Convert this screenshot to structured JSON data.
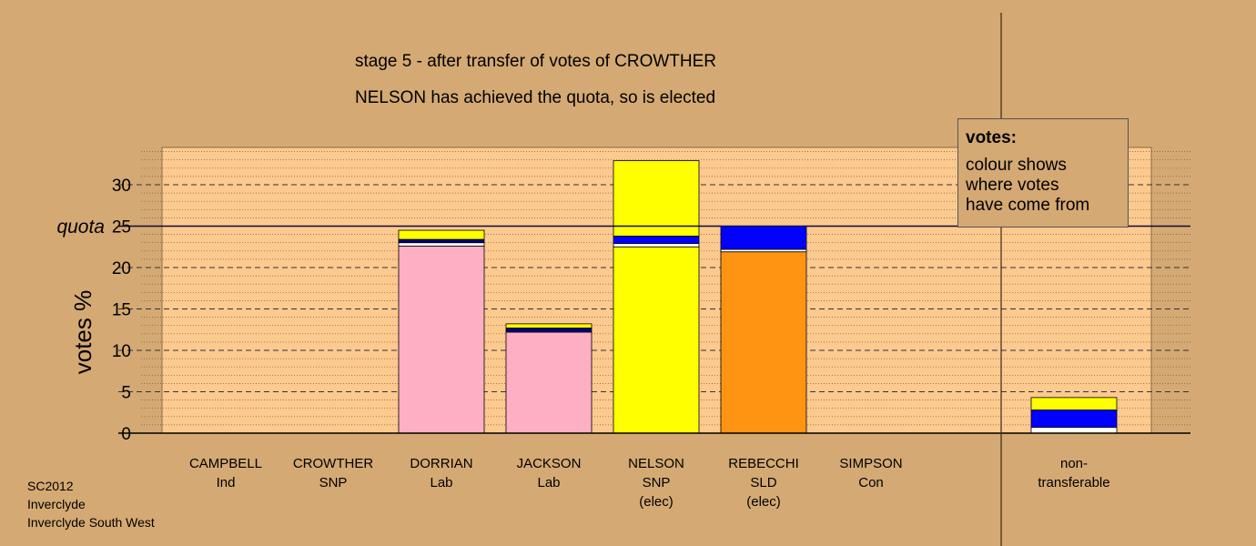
{
  "title_line1": "stage 5 - after transfer of votes of CROWTHER",
  "title_line2": "NELSON has achieved the quota, so is elected",
  "legend": {
    "title": "votes:",
    "line1": "colour shows",
    "line2": "where votes",
    "line3": "have come from"
  },
  "footer": {
    "line1": "SC2012",
    "line2": "Inverclyde",
    "line3": "Inverclyde South West"
  },
  "colors": {
    "background": "#d4a973",
    "plot_area": "#fcc98f",
    "Lab": "#ffafc3",
    "SNP": "#ffff00",
    "SLD": "#ff9412",
    "transfer_blue": "#0000ff",
    "transfer_navy": "#000080",
    "white": "#ffffff"
  },
  "chart_data": {
    "type": "bar",
    "stacked": true,
    "ylabel": "votes %",
    "ylim": [
      0,
      35
    ],
    "yticks": [
      0,
      5,
      10,
      15,
      20,
      25,
      30
    ],
    "quota": {
      "value": 25,
      "label": "quota"
    },
    "grid": true,
    "categories": [
      {
        "name": "CAMPBELL",
        "party": "Ind",
        "note": ""
      },
      {
        "name": "CROWTHER",
        "party": "SNP",
        "note": ""
      },
      {
        "name": "DORRIAN",
        "party": "Lab",
        "note": ""
      },
      {
        "name": "JACKSON",
        "party": "Lab",
        "note": ""
      },
      {
        "name": "NELSON",
        "party": "SNP",
        "note": "(elec)"
      },
      {
        "name": "REBECCHI",
        "party": "SLD",
        "note": "(elec)"
      },
      {
        "name": "SIMPSON",
        "party": "Con",
        "note": ""
      },
      {
        "name": "non-",
        "party": "transferable",
        "note": ""
      }
    ],
    "stacks": [
      [],
      [],
      [
        {
          "value": 22.6,
          "color": "Lab"
        },
        {
          "value": 0.4,
          "color": "white"
        },
        {
          "value": 0.4,
          "color": "transfer_navy"
        },
        {
          "value": 1.1,
          "color": "SNP"
        }
      ],
      [
        {
          "value": 12.2,
          "color": "Lab"
        },
        {
          "value": 0.5,
          "color": "transfer_navy"
        },
        {
          "value": 0.5,
          "color": "SNP"
        }
      ],
      [
        {
          "value": 22.5,
          "color": "SNP"
        },
        {
          "value": 0.4,
          "color": "white"
        },
        {
          "value": 0.9,
          "color": "transfer_blue"
        },
        {
          "value": 9.1,
          "color": "SNP"
        }
      ],
      [
        {
          "value": 21.9,
          "color": "SLD"
        },
        {
          "value": 0.3,
          "color": "white"
        },
        {
          "value": 2.8,
          "color": "transfer_blue"
        }
      ],
      [],
      [
        {
          "value": 0.7,
          "color": "white"
        },
        {
          "value": 2.1,
          "color": "transfer_blue"
        },
        {
          "value": 1.5,
          "color": "SNP"
        }
      ]
    ]
  }
}
